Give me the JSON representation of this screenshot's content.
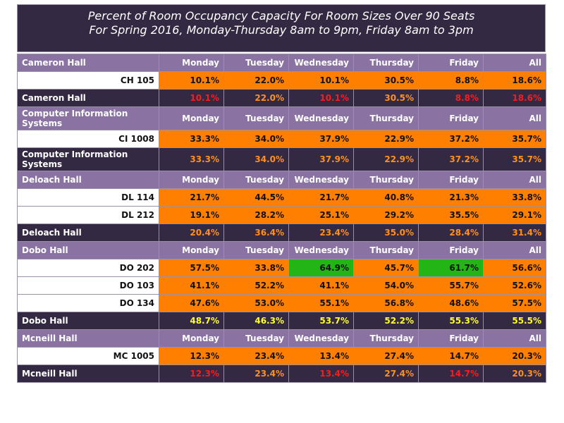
{
  "chart_data": {
    "type": "table",
    "title": "Percent of Room Occupancy Capacity For Room Sizes Over 90 Seats",
    "subtitle": "For Spring 2016, Monday-Thursday 8am to 9pm, Friday 8am to 3pm",
    "columns": [
      "Monday",
      "Tuesday",
      "Wednesday",
      "Thursday",
      "Friday",
      "All"
    ],
    "colors": {
      "header_bg": "#8a72a2",
      "title_bg": "#342942",
      "cell_orange": "#ff8000",
      "cell_green": "#22b515",
      "text_orange": "#ff9020",
      "text_red": "#ff1a1a",
      "text_yellow": "#ffff30"
    },
    "groups": [
      {
        "building": "Cameron Hall",
        "rooms": [
          {
            "name": "CH 105",
            "values": [
              "10.1%",
              "22.0%",
              "10.1%",
              "30.5%",
              "8.8%",
              "18.6%"
            ],
            "highlight": [
              "",
              "",
              "",
              "",
              "",
              ""
            ]
          }
        ],
        "total": {
          "name": "Cameron Hall",
          "values": [
            "10.1%",
            "22.0%",
            "10.1%",
            "30.5%",
            "8.8%",
            "18.6%"
          ],
          "text_colors": [
            "red",
            "orange",
            "red",
            "orange",
            "red",
            "red"
          ]
        }
      },
      {
        "building": "Computer Information Systems",
        "rooms": [
          {
            "name": "CI 1008",
            "values": [
              "33.3%",
              "34.0%",
              "37.9%",
              "22.9%",
              "37.2%",
              "35.7%"
            ],
            "highlight": [
              "",
              "",
              "",
              "",
              "",
              ""
            ]
          }
        ],
        "total": {
          "name": "Computer Information Systems",
          "values": [
            "33.3%",
            "34.0%",
            "37.9%",
            "22.9%",
            "37.2%",
            "35.7%"
          ],
          "text_colors": [
            "orange",
            "orange",
            "orange",
            "orange",
            "orange",
            "orange"
          ]
        }
      },
      {
        "building": "Deloach Hall",
        "rooms": [
          {
            "name": "DL 114",
            "values": [
              "21.7%",
              "44.5%",
              "21.7%",
              "40.8%",
              "21.3%",
              "33.8%"
            ],
            "highlight": [
              "",
              "",
              "",
              "",
              "",
              ""
            ]
          },
          {
            "name": "DL 212",
            "values": [
              "19.1%",
              "28.2%",
              "25.1%",
              "29.2%",
              "35.5%",
              "29.1%"
            ],
            "highlight": [
              "",
              "",
              "",
              "",
              "",
              ""
            ]
          }
        ],
        "total": {
          "name": "Deloach Hall",
          "values": [
            "20.4%",
            "36.4%",
            "23.4%",
            "35.0%",
            "28.4%",
            "31.4%"
          ],
          "text_colors": [
            "orange",
            "orange",
            "orange",
            "orange",
            "orange",
            "orange"
          ]
        }
      },
      {
        "building": "Dobo Hall",
        "rooms": [
          {
            "name": "DO 202",
            "values": [
              "57.5%",
              "33.8%",
              "64.9%",
              "45.7%",
              "61.7%",
              "56.6%"
            ],
            "highlight": [
              "",
              "",
              "green",
              "",
              "green",
              ""
            ]
          },
          {
            "name": "DO 103",
            "values": [
              "41.1%",
              "52.2%",
              "41.1%",
              "54.0%",
              "55.7%",
              "52.6%"
            ],
            "highlight": [
              "",
              "",
              "",
              "",
              "",
              ""
            ]
          },
          {
            "name": "DO 134",
            "values": [
              "47.6%",
              "53.0%",
              "55.1%",
              "56.8%",
              "48.6%",
              "57.5%"
            ],
            "highlight": [
              "",
              "",
              "",
              "",
              "",
              ""
            ]
          }
        ],
        "total": {
          "name": "Dobo Hall",
          "values": [
            "48.7%",
            "46.3%",
            "53.7%",
            "52.2%",
            "55.3%",
            "55.5%"
          ],
          "text_colors": [
            "yellow",
            "yellow",
            "yellow",
            "yellow",
            "yellow",
            "yellow"
          ]
        }
      },
      {
        "building": "Mcneill Hall",
        "rooms": [
          {
            "name": "MC 1005",
            "values": [
              "12.3%",
              "23.4%",
              "13.4%",
              "27.4%",
              "14.7%",
              "20.3%"
            ],
            "highlight": [
              "",
              "",
              "",
              "",
              "",
              ""
            ]
          }
        ],
        "total": {
          "name": "Mcneill Hall",
          "values": [
            "12.3%",
            "23.4%",
            "13.4%",
            "27.4%",
            "14.7%",
            "20.3%"
          ],
          "text_colors": [
            "red",
            "orange",
            "red",
            "orange",
            "red",
            "orange"
          ]
        }
      }
    ]
  }
}
